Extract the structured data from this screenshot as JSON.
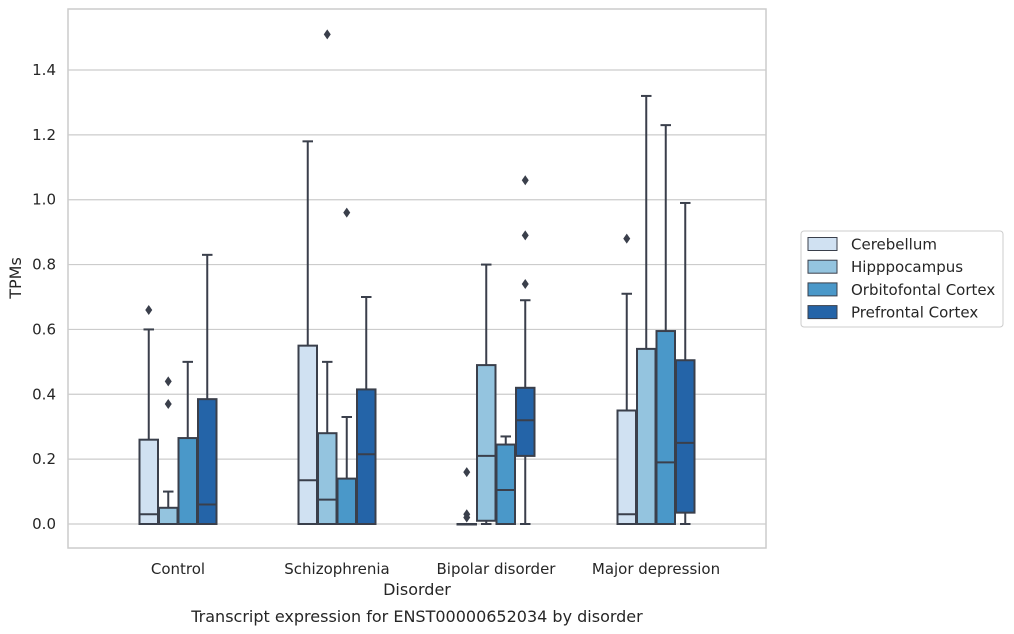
{
  "chart_data": {
    "type": "boxplot",
    "xlabel": "Disorder",
    "ylabel": "TPMs",
    "caption": "Transcript expression for ENST00000652034 by disorder",
    "ylim": [
      -0.07,
      1.59
    ],
    "yticks": [
      0.0,
      0.2,
      0.4,
      0.6,
      0.8,
      1.0,
      1.2,
      1.4
    ],
    "ytick_labels": [
      "0.0",
      "0.2",
      "0.4",
      "0.6",
      "0.8",
      "1.0",
      "1.2",
      "1.4"
    ],
    "grid": "horizontal",
    "legend_position": "right",
    "categories": [
      "Control",
      "Schizophrenia",
      "Bipolar disorder",
      "Major depression"
    ],
    "series": [
      {
        "name": "Cerebellum",
        "color": "#d0e1f2",
        "boxes": [
          {
            "q1": 0.0,
            "median": 0.03,
            "q3": 0.26,
            "whisker_low": 0.0,
            "whisker_high": 0.6,
            "outliers": [
              0.66
            ]
          },
          {
            "q1": 0.0,
            "median": 0.135,
            "q3": 0.55,
            "whisker_low": 0.0,
            "whisker_high": 1.18,
            "outliers": []
          },
          {
            "q1": 0.0,
            "median": 0.0,
            "q3": 0.0,
            "whisker_low": 0.0,
            "whisker_high": 0.0,
            "outliers": [
              0.02,
              0.03,
              0.16
            ]
          },
          {
            "q1": 0.0,
            "median": 0.03,
            "q3": 0.35,
            "whisker_low": 0.0,
            "whisker_high": 0.71,
            "outliers": [
              0.88
            ]
          }
        ]
      },
      {
        "name": "Hipppocampus",
        "color": "#94c4df",
        "boxes": [
          {
            "q1": 0.0,
            "median": 0.0,
            "q3": 0.05,
            "whisker_low": 0.0,
            "whisker_high": 0.1,
            "outliers": [
              0.37,
              0.44
            ]
          },
          {
            "q1": 0.0,
            "median": 0.075,
            "q3": 0.28,
            "whisker_low": 0.0,
            "whisker_high": 0.5,
            "outliers": [
              1.51
            ]
          },
          {
            "q1": 0.01,
            "median": 0.21,
            "q3": 0.49,
            "whisker_low": 0.0,
            "whisker_high": 0.8,
            "outliers": []
          },
          {
            "q1": 0.0,
            "median": 0.0,
            "q3": 0.54,
            "whisker_low": 0.0,
            "whisker_high": 1.32,
            "outliers": []
          }
        ]
      },
      {
        "name": "Orbitofontal Cortex",
        "color": "#4a98c9",
        "boxes": [
          {
            "q1": 0.0,
            "median": 0.0,
            "q3": 0.265,
            "whisker_low": 0.0,
            "whisker_high": 0.5,
            "outliers": []
          },
          {
            "q1": 0.0,
            "median": 0.0,
            "q3": 0.14,
            "whisker_low": 0.0,
            "whisker_high": 0.33,
            "outliers": [
              0.96
            ]
          },
          {
            "q1": 0.0,
            "median": 0.105,
            "q3": 0.245,
            "whisker_low": 0.0,
            "whisker_high": 0.27,
            "outliers": []
          },
          {
            "q1": 0.0,
            "median": 0.19,
            "q3": 0.595,
            "whisker_low": 0.0,
            "whisker_high": 1.23,
            "outliers": []
          }
        ]
      },
      {
        "name": "Prefrontal Cortex",
        "color": "#2464a8",
        "boxes": [
          {
            "q1": 0.0,
            "median": 0.06,
            "q3": 0.385,
            "whisker_low": 0.0,
            "whisker_high": 0.83,
            "outliers": []
          },
          {
            "q1": 0.0,
            "median": 0.215,
            "q3": 0.415,
            "whisker_low": 0.0,
            "whisker_high": 0.7,
            "outliers": []
          },
          {
            "q1": 0.21,
            "median": 0.32,
            "q3": 0.42,
            "whisker_low": 0.0,
            "whisker_high": 0.69,
            "outliers": [
              0.74,
              0.89,
              1.06
            ]
          },
          {
            "q1": 0.035,
            "median": 0.25,
            "q3": 0.505,
            "whisker_low": 0.0,
            "whisker_high": 0.99,
            "outliers": []
          }
        ]
      }
    ]
  }
}
